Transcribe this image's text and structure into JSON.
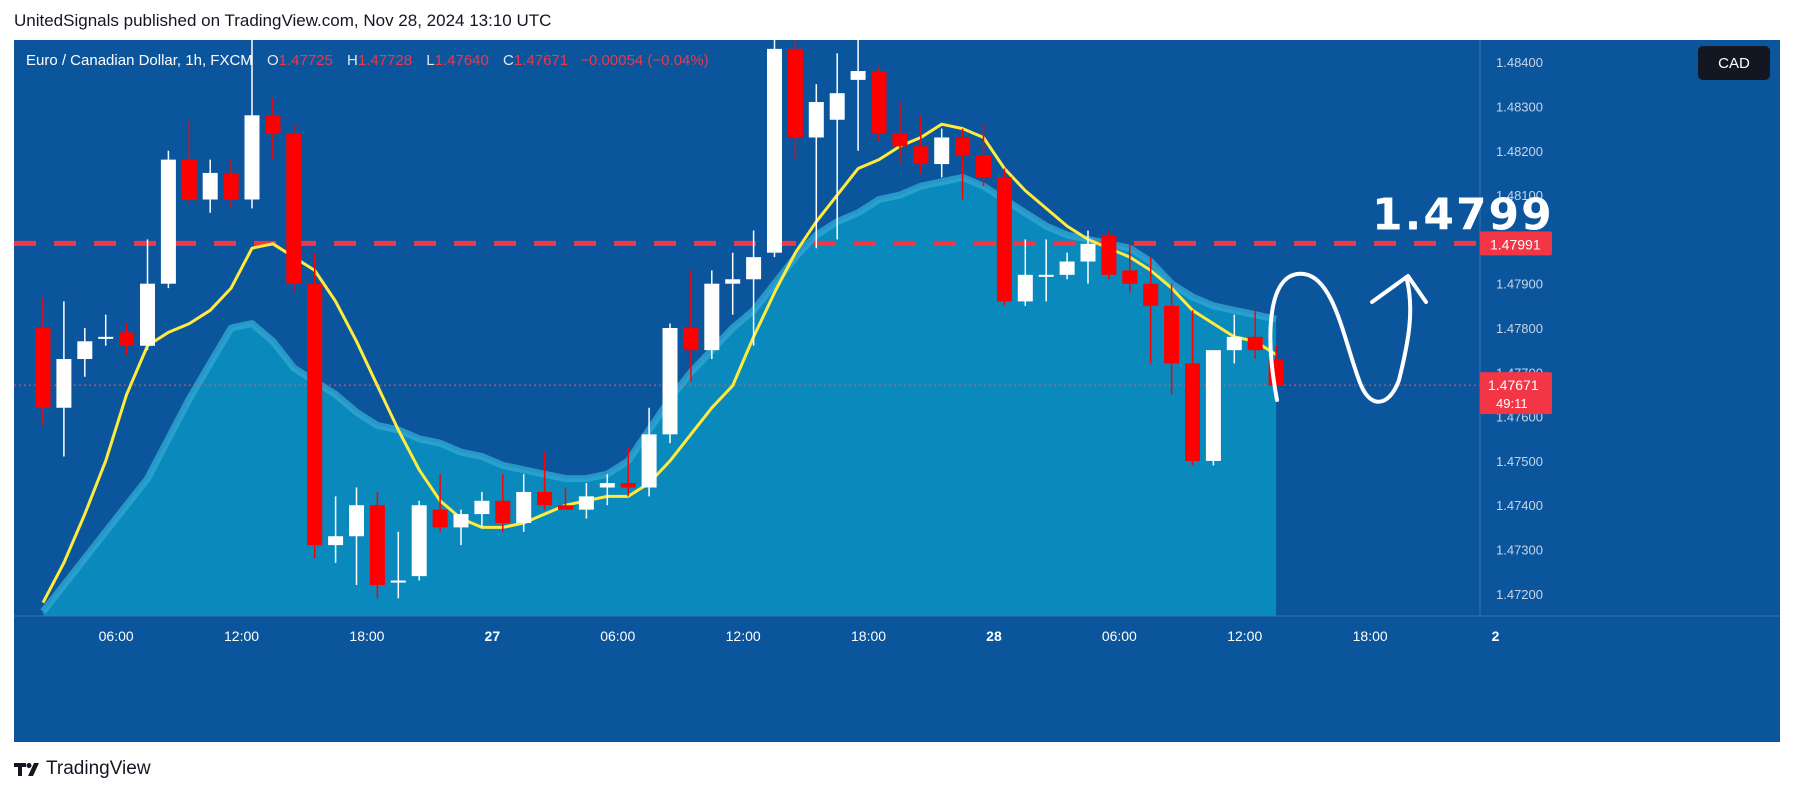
{
  "caption": "UnitedSignals published on TradingView.com, Nov 28, 2024 13:10 UTC",
  "legend": {
    "symbol": "Euro / Canadian Dollar, 1h, FXCM",
    "open_label": "O",
    "open": "1.47725",
    "high_label": "H",
    "high": "1.47728",
    "low_label": "L",
    "low": "1.47640",
    "close_label": "C",
    "close": "1.47671",
    "change": "−0.00054 (−0.04%)"
  },
  "currency_badge": "CAD",
  "footer_brand": "TradingView",
  "colors": {
    "background": "#0b559c",
    "up_candle": "#ffffff",
    "down_candle": "#ff0000",
    "sma_line": "#ffeb3b",
    "sma_line_overlap": "#9be09b",
    "area_fill": "#0a8fc0",
    "area_line": "#2fa7d2",
    "target_line": "#f23645",
    "price_tag": "#f23645"
  },
  "chart_data": {
    "type": "candlestick",
    "timeframe": "1h",
    "ylim": [
      1.4715,
      1.4845
    ],
    "y_ticks": [
      "1.47200",
      "1.47300",
      "1.47400",
      "1.47500",
      "1.47600",
      "1.47700",
      "1.47800",
      "1.47900",
      "1.48100",
      "1.48200",
      "1.48300",
      "1.48400"
    ],
    "x_ticks": [
      {
        "label": "06:00",
        "index": 3.5
      },
      {
        "label": "12:00",
        "index": 9.5
      },
      {
        "label": "18:00",
        "index": 15.5
      },
      {
        "label": "27",
        "index": 21.5
      },
      {
        "label": "06:00",
        "index": 27.5
      },
      {
        "label": "12:00",
        "index": 33.5
      },
      {
        "label": "18:00",
        "index": 39.5
      },
      {
        "label": "28",
        "index": 45.5
      },
      {
        "label": "06:00",
        "index": 51.5
      },
      {
        "label": "12:00",
        "index": 57.5
      },
      {
        "label": "18:00",
        "index": 63.5
      },
      {
        "label": "2",
        "index": 69.5
      }
    ],
    "candles": [
      {
        "o": 1.478,
        "h": 1.4787,
        "l": 1.4758,
        "c": 1.4762
      },
      {
        "o": 1.4762,
        "h": 1.4786,
        "l": 1.4751,
        "c": 1.4773
      },
      {
        "o": 1.4773,
        "h": 1.478,
        "l": 1.4769,
        "c": 1.4777
      },
      {
        "o": 1.4778,
        "h": 1.4783,
        "l": 1.4776,
        "c": 1.4778
      },
      {
        "o": 1.4779,
        "h": 1.4781,
        "l": 1.4774,
        "c": 1.4776
      },
      {
        "o": 1.4776,
        "h": 1.48,
        "l": 1.4775,
        "c": 1.479
      },
      {
        "o": 1.479,
        "h": 1.482,
        "l": 1.4789,
        "c": 1.4818
      },
      {
        "o": 1.4818,
        "h": 1.4827,
        "l": 1.4808,
        "c": 1.4809
      },
      {
        "o": 1.4809,
        "h": 1.4818,
        "l": 1.4806,
        "c": 1.4815
      },
      {
        "o": 1.4815,
        "h": 1.4818,
        "l": 1.4807,
        "c": 1.4809
      },
      {
        "o": 1.4809,
        "h": 1.4848,
        "l": 1.4807,
        "c": 1.4828
      },
      {
        "o": 1.4828,
        "h": 1.4832,
        "l": 1.4818,
        "c": 1.4824
      },
      {
        "o": 1.4824,
        "h": 1.4826,
        "l": 1.4788,
        "c": 1.479
      },
      {
        "o": 1.479,
        "h": 1.4797,
        "l": 1.4728,
        "c": 1.4731
      },
      {
        "o": 1.4731,
        "h": 1.4742,
        "l": 1.4727,
        "c": 1.4733
      },
      {
        "o": 1.4733,
        "h": 1.4744,
        "l": 1.4722,
        "c": 1.474
      },
      {
        "o": 1.474,
        "h": 1.4743,
        "l": 1.4719,
        "c": 1.4722
      },
      {
        "o": 1.4723,
        "h": 1.4734,
        "l": 1.4719,
        "c": 1.4723
      },
      {
        "o": 1.4724,
        "h": 1.4741,
        "l": 1.4723,
        "c": 1.474
      },
      {
        "o": 1.4739,
        "h": 1.4747,
        "l": 1.4734,
        "c": 1.4735
      },
      {
        "o": 1.4735,
        "h": 1.4739,
        "l": 1.4731,
        "c": 1.4738
      },
      {
        "o": 1.4738,
        "h": 1.4743,
        "l": 1.4735,
        "c": 1.4741
      },
      {
        "o": 1.4741,
        "h": 1.4747,
        "l": 1.4734,
        "c": 1.4736
      },
      {
        "o": 1.4736,
        "h": 1.4747,
        "l": 1.4734,
        "c": 1.4743
      },
      {
        "o": 1.4743,
        "h": 1.4752,
        "l": 1.4739,
        "c": 1.474
      },
      {
        "o": 1.474,
        "h": 1.4744,
        "l": 1.4739,
        "c": 1.4739
      },
      {
        "o": 1.4739,
        "h": 1.4745,
        "l": 1.4737,
        "c": 1.4742
      },
      {
        "o": 1.4744,
        "h": 1.4747,
        "l": 1.474,
        "c": 1.4745
      },
      {
        "o": 1.4745,
        "h": 1.4753,
        "l": 1.4742,
        "c": 1.4744
      },
      {
        "o": 1.4744,
        "h": 1.4762,
        "l": 1.4742,
        "c": 1.4756
      },
      {
        "o": 1.4756,
        "h": 1.4781,
        "l": 1.4754,
        "c": 1.478
      },
      {
        "o": 1.478,
        "h": 1.4793,
        "l": 1.4768,
        "c": 1.4775
      },
      {
        "o": 1.4775,
        "h": 1.4793,
        "l": 1.4773,
        "c": 1.479
      },
      {
        "o": 1.479,
        "h": 1.4797,
        "l": 1.4783,
        "c": 1.4791
      },
      {
        "o": 1.4791,
        "h": 1.4802,
        "l": 1.4776,
        "c": 1.4796
      },
      {
        "o": 1.4797,
        "h": 1.4847,
        "l": 1.4796,
        "c": 1.4843
      },
      {
        "o": 1.4843,
        "h": 1.4848,
        "l": 1.4818,
        "c": 1.4823
      },
      {
        "o": 1.4823,
        "h": 1.4835,
        "l": 1.4798,
        "c": 1.4831
      },
      {
        "o": 1.4827,
        "h": 1.4842,
        "l": 1.48,
        "c": 1.4833
      },
      {
        "o": 1.4836,
        "h": 1.485,
        "l": 1.482,
        "c": 1.4838
      },
      {
        "o": 1.4838,
        "h": 1.4839,
        "l": 1.4822,
        "c": 1.4824
      },
      {
        "o": 1.4824,
        "h": 1.4831,
        "l": 1.4817,
        "c": 1.4821
      },
      {
        "o": 1.4821,
        "h": 1.4828,
        "l": 1.4815,
        "c": 1.4817
      },
      {
        "o": 1.4817,
        "h": 1.4825,
        "l": 1.4814,
        "c": 1.4823
      },
      {
        "o": 1.4823,
        "h": 1.4825,
        "l": 1.4809,
        "c": 1.4819
      },
      {
        "o": 1.4819,
        "h": 1.4826,
        "l": 1.4812,
        "c": 1.4814
      },
      {
        "o": 1.4814,
        "h": 1.4816,
        "l": 1.4785,
        "c": 1.4786
      },
      {
        "o": 1.4786,
        "h": 1.48,
        "l": 1.4785,
        "c": 1.4792
      },
      {
        "o": 1.4792,
        "h": 1.48,
        "l": 1.4786,
        "c": 1.4792
      },
      {
        "o": 1.4792,
        "h": 1.4797,
        "l": 1.4791,
        "c": 1.4795
      },
      {
        "o": 1.4795,
        "h": 1.4802,
        "l": 1.479,
        "c": 1.4799
      },
      {
        "o": 1.4801,
        "h": 1.4802,
        "l": 1.4791,
        "c": 1.4792
      },
      {
        "o": 1.4793,
        "h": 1.4799,
        "l": 1.4788,
        "c": 1.479
      },
      {
        "o": 1.479,
        "h": 1.4796,
        "l": 1.4772,
        "c": 1.4785
      },
      {
        "o": 1.4785,
        "h": 1.479,
        "l": 1.4765,
        "c": 1.4772
      },
      {
        "o": 1.4772,
        "h": 1.4784,
        "l": 1.4749,
        "c": 1.475
      },
      {
        "o": 1.475,
        "h": 1.4774,
        "l": 1.4749,
        "c": 1.4775
      },
      {
        "o": 1.4775,
        "h": 1.4783,
        "l": 1.4772,
        "c": 1.4778
      },
      {
        "o": 1.4778,
        "h": 1.4784,
        "l": 1.4773,
        "c": 1.4775
      },
      {
        "o": 1.4773,
        "h": 1.4776,
        "l": 1.4766,
        "c": 1.4767
      }
    ],
    "moving_average": [
      1.4718,
      1.4727,
      1.4738,
      1.475,
      1.4765,
      1.4776,
      1.4779,
      1.4781,
      1.4784,
      1.4789,
      1.4798,
      1.4799,
      1.4796,
      1.4793,
      1.4786,
      1.4777,
      1.4767,
      1.4757,
      1.4748,
      1.4741,
      1.4737,
      1.4735,
      1.4735,
      1.4736,
      1.4738,
      1.474,
      1.4741,
      1.4742,
      1.4742,
      1.4745,
      1.475,
      1.4756,
      1.4762,
      1.4767,
      1.4778,
      1.4788,
      1.4797,
      1.4804,
      1.481,
      1.4816,
      1.4818,
      1.4821,
      1.4823,
      1.4826,
      1.4825,
      1.4823,
      1.4816,
      1.4811,
      1.4807,
      1.4803,
      1.48,
      1.4798,
      1.4796,
      1.4793,
      1.4789,
      1.4784,
      1.4781,
      1.4778,
      1.4777,
      1.4774
    ],
    "area_series": [
      1.4716,
      1.4722,
      1.4728,
      1.4734,
      1.474,
      1.4746,
      1.4755,
      1.4764,
      1.4772,
      1.478,
      1.4781,
      1.4777,
      1.4771,
      1.4768,
      1.4765,
      1.4761,
      1.4758,
      1.4757,
      1.4755,
      1.4754,
      1.4752,
      1.4751,
      1.4749,
      1.4748,
      1.4747,
      1.4746,
      1.4746,
      1.4747,
      1.475,
      1.4757,
      1.4764,
      1.477,
      1.4775,
      1.478,
      1.4784,
      1.479,
      1.4796,
      1.4801,
      1.4804,
      1.4806,
      1.4809,
      1.481,
      1.4812,
      1.4813,
      1.4814,
      1.4812,
      1.4809,
      1.4806,
      1.4803,
      1.4801,
      1.48,
      1.4799,
      1.4798,
      1.4795,
      1.479,
      1.4787,
      1.4785,
      1.4784,
      1.4783,
      1.4782
    ],
    "horizontal_line": {
      "value": 1.47991,
      "label": "1.47991",
      "annotation": "1.4799"
    },
    "last_price": {
      "value": 1.47671,
      "label": "1.47671",
      "countdown": "49:11"
    }
  }
}
